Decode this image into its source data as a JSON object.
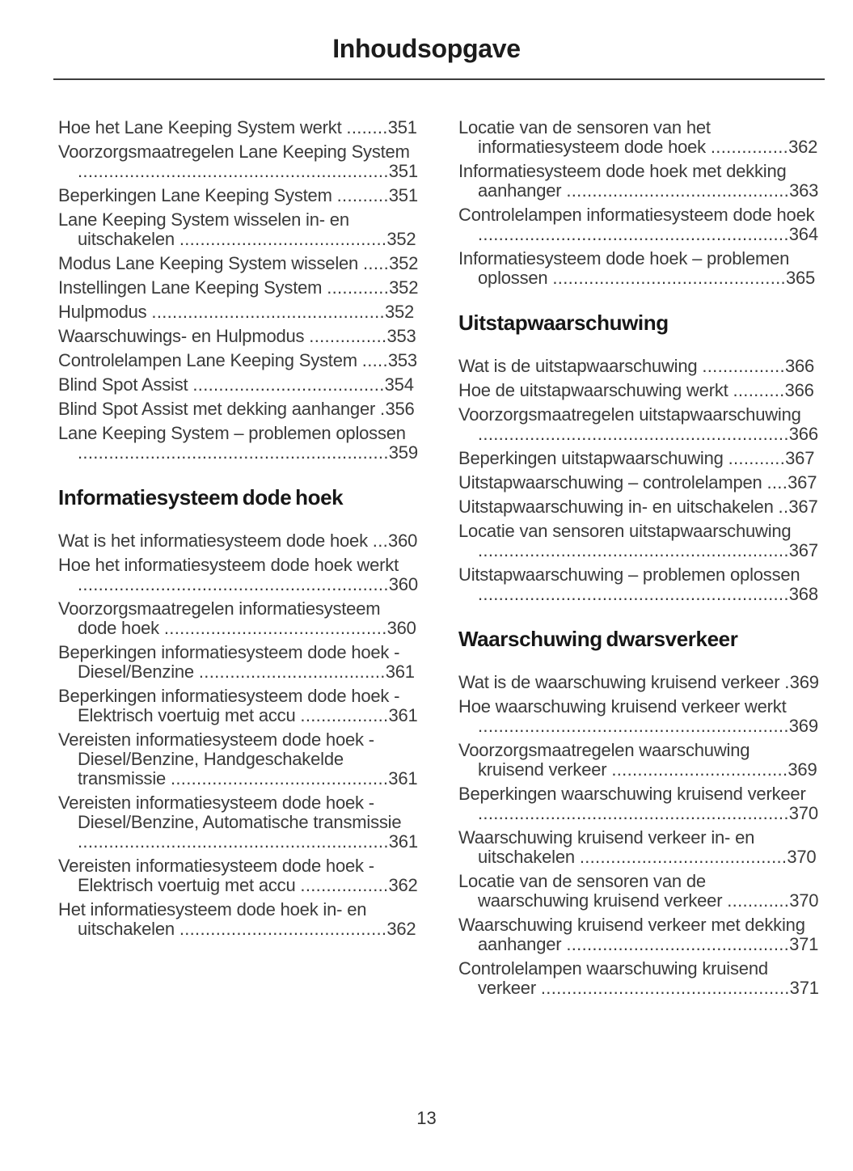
{
  "page": {
    "title": "Inhoudsopgave",
    "footer_page_number": "13"
  },
  "colors": {
    "ink": "#3a3a3a",
    "heading_ink": "#171717",
    "background": "#ffffff"
  },
  "toc": {
    "columns": [
      {
        "sections": [
          {
            "heading": null,
            "entries": [
              {
                "title": "Hoe het Lane Keeping System werkt",
                "page": "351"
              },
              {
                "title": "Voorzorgsmaatregelen Lane Keeping System",
                "page": "351"
              },
              {
                "title": "Beperkingen Lane Keeping System",
                "page": "351"
              },
              {
                "title": "Lane Keeping System wisselen in- en uitschakelen",
                "page": "352"
              },
              {
                "title": "Modus Lane Keeping System wisselen",
                "page": "352"
              },
              {
                "title": "Instellingen Lane Keeping System",
                "page": "352"
              },
              {
                "title": "Hulpmodus",
                "page": "352"
              },
              {
                "title": "Waarschuwings- en Hulpmodus",
                "page": "353"
              },
              {
                "title": "Controlelampen Lane Keeping System",
                "page": "353"
              },
              {
                "title": "Blind Spot Assist",
                "page": "354"
              },
              {
                "title": "Blind Spot Assist met dekking aanhanger",
                "page": "356"
              },
              {
                "title": "Lane Keeping System – problemen oplossen",
                "page": "359"
              }
            ]
          },
          {
            "heading": "Informatiesysteem dode hoek",
            "entries": [
              {
                "title": "Wat is het informatiesysteem dode hoek",
                "page": "360"
              },
              {
                "title": "Hoe het informatiesysteem dode hoek werkt",
                "page": "360"
              },
              {
                "title": "Voorzorgsmaatregelen informatiesysteem dode hoek",
                "page": "360"
              },
              {
                "title": "Beperkingen informatiesysteem dode hoek - Diesel/Benzine",
                "page": "361"
              },
              {
                "title": "Beperkingen informatiesysteem dode hoek - Elektrisch voertuig met accu",
                "page": "361"
              },
              {
                "title": "Vereisten informatiesysteem dode hoek - Diesel/Benzine, Handgeschakelde transmissie",
                "page": "361"
              },
              {
                "title": "Vereisten informatiesysteem dode hoek - Diesel/Benzine, Automatische transmissie",
                "page": "361"
              },
              {
                "title": "Vereisten informatiesysteem dode hoek - Elektrisch voertuig met accu",
                "page": "362"
              },
              {
                "title": "Het informatiesysteem dode hoek in- en uitschakelen",
                "page": "362"
              }
            ]
          }
        ]
      },
      {
        "sections": [
          {
            "heading": null,
            "entries": [
              {
                "title": "Locatie van de sensoren van het informatiesysteem dode hoek",
                "page": "362"
              },
              {
                "title": "Informatiesysteem dode hoek met dekking aanhanger",
                "page": "363"
              },
              {
                "title": "Controlelampen informatiesysteem dode hoek",
                "page": "364"
              },
              {
                "title": "Informatiesysteem dode hoek – problemen oplossen",
                "page": "365"
              }
            ]
          },
          {
            "heading": "Uitstapwaarschuwing",
            "entries": [
              {
                "title": "Wat is de uitstapwaarschuwing",
                "page": "366"
              },
              {
                "title": "Hoe de uitstapwaarschuwing werkt",
                "page": "366"
              },
              {
                "title": "Voorzorgsmaatregelen uitstapwaarschuwing",
                "page": "366"
              },
              {
                "title": "Beperkingen uitstapwaarschuwing",
                "page": "367"
              },
              {
                "title": "Uitstapwaarschuwing – controlelampen",
                "page": "367"
              },
              {
                "title": "Uitstapwaarschuwing in- en uitschakelen",
                "page": "367"
              },
              {
                "title": "Locatie van sensoren uitstapwaarschuwing",
                "page": "367"
              },
              {
                "title": "Uitstapwaarschuwing – problemen oplossen",
                "page": "368"
              }
            ]
          },
          {
            "heading": "Waarschuwing dwarsverkeer",
            "entries": [
              {
                "title": "Wat is de waarschuwing kruisend verkeer",
                "page": "369"
              },
              {
                "title": "Hoe waarschuwing kruisend verkeer werkt",
                "page": "369"
              },
              {
                "title": "Voorzorgsmaatregelen waarschuwing kruisend verkeer",
                "page": "369"
              },
              {
                "title": "Beperkingen waarschuwing kruisend verkeer",
                "page": "370"
              },
              {
                "title": "Waarschuwing kruisend verkeer in- en uitschakelen",
                "page": "370"
              },
              {
                "title": "Locatie van de sensoren van de waarschuwing kruisend verkeer",
                "page": "370"
              },
              {
                "title": "Waarschuwing kruisend verkeer met dekking aanhanger",
                "page": "371"
              },
              {
                "title": "Controlelampen waarschuwing kruisend verkeer",
                "page": "371"
              }
            ]
          }
        ]
      }
    ]
  }
}
